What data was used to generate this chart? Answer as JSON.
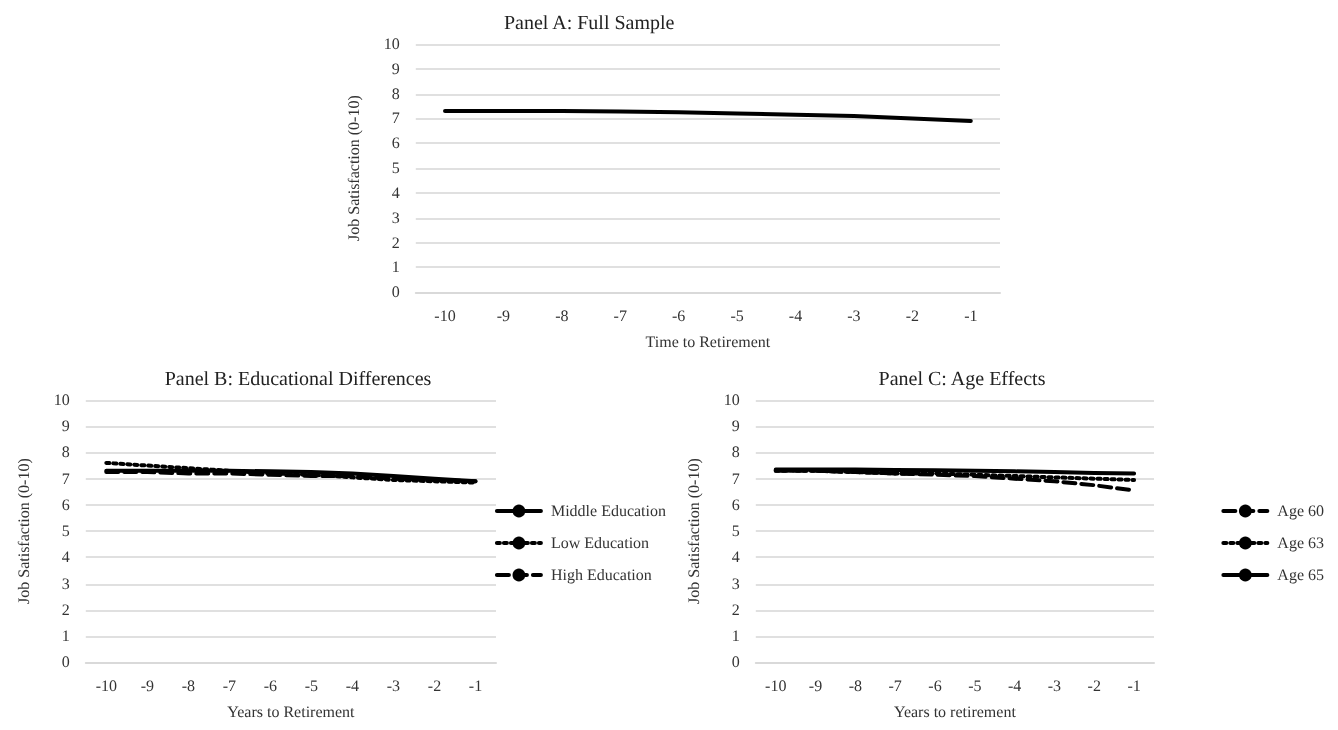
{
  "chart_data": [
    {
      "type": "line",
      "title": "Panel A: Full Sample",
      "xlabel": "Time to Retirement",
      "ylabel": "Job Satisfaction (0-10)",
      "categories": [
        "-10",
        "-9",
        "-8",
        "-7",
        "-6",
        "-5",
        "-4",
        "-3",
        "-2",
        "-1"
      ],
      "series": [
        {
          "color": "#000000",
          "line_style": "solid",
          "values": [
            7.3,
            7.3,
            7.3,
            7.28,
            7.25,
            7.2,
            7.15,
            7.1,
            7.0,
            6.9
          ]
        }
      ],
      "ylim": [
        0,
        10
      ],
      "yticks": [
        0,
        1,
        2,
        3,
        4,
        5,
        6,
        7,
        8,
        9,
        10
      ],
      "grid": "y",
      "marker": "none",
      "legend": false
    },
    {
      "type": "line",
      "title": "Panel B: Educational Differences",
      "xlabel": "Years to Retirement",
      "ylabel": "Job Satisfaction (0-10)",
      "categories": [
        "-10",
        "-9",
        "-8",
        "-7",
        "-6",
        "-5",
        "-4",
        "-3",
        "-2",
        "-1"
      ],
      "series": [
        {
          "name": "Middle Education",
          "color": "#000000",
          "line_style": "solid",
          "values": [
            7.3,
            7.3,
            7.3,
            7.3,
            7.28,
            7.25,
            7.2,
            7.1,
            7.0,
            6.9
          ]
        },
        {
          "name": "Low Education",
          "color": "#000000",
          "line_style": "dotted",
          "values": [
            7.6,
            7.5,
            7.4,
            7.3,
            7.2,
            7.15,
            7.05,
            6.95,
            6.9,
            6.85
          ]
        },
        {
          "name": "High Education",
          "color": "#000000",
          "line_style": "dashed",
          "values": [
            7.25,
            7.25,
            7.2,
            7.2,
            7.15,
            7.1,
            7.1,
            7.0,
            6.95,
            6.9
          ]
        }
      ],
      "ylim": [
        0,
        10
      ],
      "yticks": [
        0,
        1,
        2,
        3,
        4,
        5,
        6,
        7,
        8,
        9,
        10
      ],
      "grid": "y",
      "marker": "none",
      "legend": "right"
    },
    {
      "type": "line",
      "title": "Panel C: Age Effects",
      "xlabel": "Years to retirement",
      "ylabel": "Job Satisfaction (0-10)",
      "categories": [
        "-10",
        "-9",
        "-8",
        "-7",
        "-6",
        "-5",
        "-4",
        "-3",
        "-2",
        "-1"
      ],
      "series": [
        {
          "name": "Age 60",
          "color": "#000000",
          "line_style": "dashed",
          "values": [
            7.3,
            7.3,
            7.25,
            7.2,
            7.15,
            7.1,
            7.0,
            6.9,
            6.75,
            6.55
          ]
        },
        {
          "name": "Age 63",
          "color": "#000000",
          "line_style": "dotted",
          "values": [
            7.3,
            7.3,
            7.25,
            7.2,
            7.2,
            7.15,
            7.1,
            7.05,
            7.0,
            6.95
          ]
        },
        {
          "name": "Age 65",
          "color": "#000000",
          "line_style": "solid",
          "values": [
            7.35,
            7.35,
            7.35,
            7.33,
            7.32,
            7.3,
            7.28,
            7.25,
            7.22,
            7.2
          ]
        }
      ],
      "ylim": [
        0,
        10
      ],
      "yticks": [
        0,
        1,
        2,
        3,
        4,
        5,
        6,
        7,
        8,
        9,
        10
      ],
      "grid": "y",
      "marker": "none",
      "legend": "right"
    }
  ]
}
